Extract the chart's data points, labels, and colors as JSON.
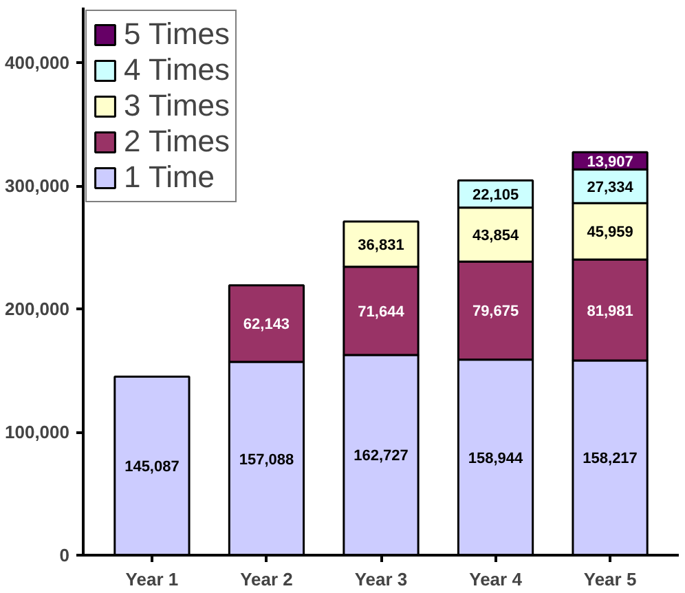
{
  "chart_data": {
    "type": "bar",
    "stacked": true,
    "categories": [
      "Year 1",
      "Year 2",
      "Year 3",
      "Year 4",
      "Year 5"
    ],
    "series": [
      {
        "name": "1 Time",
        "color": "#ccccff",
        "values": [
          145087,
          157088,
          162727,
          158944,
          158217
        ],
        "value_labels": [
          "145,087",
          "157,088",
          "162,727",
          "158,944",
          "158,217"
        ]
      },
      {
        "name": "2 Times",
        "color": "#993366",
        "values": [
          null,
          62143,
          71644,
          79675,
          81981
        ],
        "value_labels": [
          null,
          "62,143",
          "71,644",
          "79,675",
          "81,981"
        ]
      },
      {
        "name": "3 Times",
        "color": "#ffffcc",
        "values": [
          null,
          null,
          36831,
          43854,
          45959
        ],
        "value_labels": [
          null,
          null,
          "36,831",
          "43,854",
          "45,959"
        ]
      },
      {
        "name": "4 Times",
        "color": "#ccffff",
        "values": [
          null,
          null,
          null,
          22105,
          27334
        ],
        "value_labels": [
          null,
          null,
          null,
          "22,105",
          "27,334"
        ]
      },
      {
        "name": "5 Times",
        "color": "#660066",
        "values": [
          null,
          null,
          null,
          null,
          13907
        ],
        "value_labels": [
          null,
          null,
          null,
          null,
          "13,907"
        ]
      }
    ],
    "ylim": [
      0,
      445000
    ],
    "yticks": [
      {
        "value": 0,
        "label": "0"
      },
      {
        "value": 100000,
        "label": "100,000"
      },
      {
        "value": 200000,
        "label": "200,000"
      },
      {
        "value": 300000,
        "label": "300,000"
      },
      {
        "value": 400000,
        "label": "400,000"
      }
    ],
    "legend": "top left",
    "grid": false
  }
}
